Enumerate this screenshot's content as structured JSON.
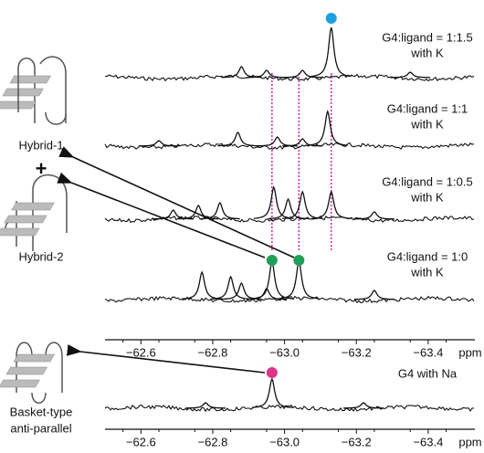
{
  "chart_data": {
    "type": "spectra",
    "xlim": [
      -62.5,
      -63.53
    ],
    "xticks": [
      {
        "value": -62.6,
        "label": "−62.6"
      },
      {
        "value": -62.8,
        "label": "−62.8"
      },
      {
        "value": -63.0,
        "label": "−63.0"
      },
      {
        "value": -63.2,
        "label": "−63.2"
      },
      {
        "value": -63.4,
        "label": "−63.4"
      }
    ],
    "x_unit": "ppm",
    "guides": [
      -62.965,
      -63.04,
      -63.13
    ],
    "guide_color": "#d6249f",
    "spectra": [
      {
        "name": [
          "G4:ligand = 1:1.5",
          "with K"
        ],
        "peaks": {
          "x": [
            -63.13,
            -62.88,
            -62.95,
            -63.05,
            -63.35
          ],
          "values": [
            55,
            12,
            8,
            8,
            6
          ]
        },
        "markers": [
          {
            "x": -63.13,
            "color": "#1ba1e2"
          }
        ]
      },
      {
        "name": [
          "G4:ligand = 1:1",
          "with K"
        ],
        "peaks": {
          "x": [
            -63.12,
            -62.87,
            -62.98,
            -63.05,
            -62.65
          ],
          "values": [
            38,
            15,
            10,
            8,
            6
          ]
        },
        "markers": []
      },
      {
        "name": [
          "G4:ligand = 1:0.5",
          "with K"
        ],
        "peaks": {
          "x": [
            -62.97,
            -63.01,
            -63.05,
            -63.13,
            -62.76,
            -62.82,
            -62.69,
            -63.25
          ],
          "values": [
            35,
            22,
            30,
            30,
            15,
            18,
            10,
            8
          ]
        },
        "markers": []
      },
      {
        "name": [
          "G4:ligand = 1:0",
          "with K"
        ],
        "peaks": {
          "x": [
            -62.965,
            -63.04,
            -62.77,
            -62.85,
            -62.88,
            -62.95,
            -63.25
          ],
          "values": [
            42,
            42,
            30,
            25,
            18,
            12,
            10
          ]
        },
        "markers": [
          {
            "x": -62.965,
            "color": "#1f9e5a"
          },
          {
            "x": -63.04,
            "color": "#1f9e5a"
          }
        ]
      },
      {
        "name": [
          "G4 with Na"
        ],
        "peaks": {
          "x": [
            -62.965,
            -62.78,
            -63.22
          ],
          "values": [
            32,
            6,
            6
          ]
        },
        "markers": [
          {
            "x": -62.965,
            "color": "#e0338a"
          }
        ]
      }
    ],
    "structures": [
      "Hybrid-1",
      "+",
      "Hybrid-2",
      "Basket-type",
      "anti-parallel"
    ]
  }
}
